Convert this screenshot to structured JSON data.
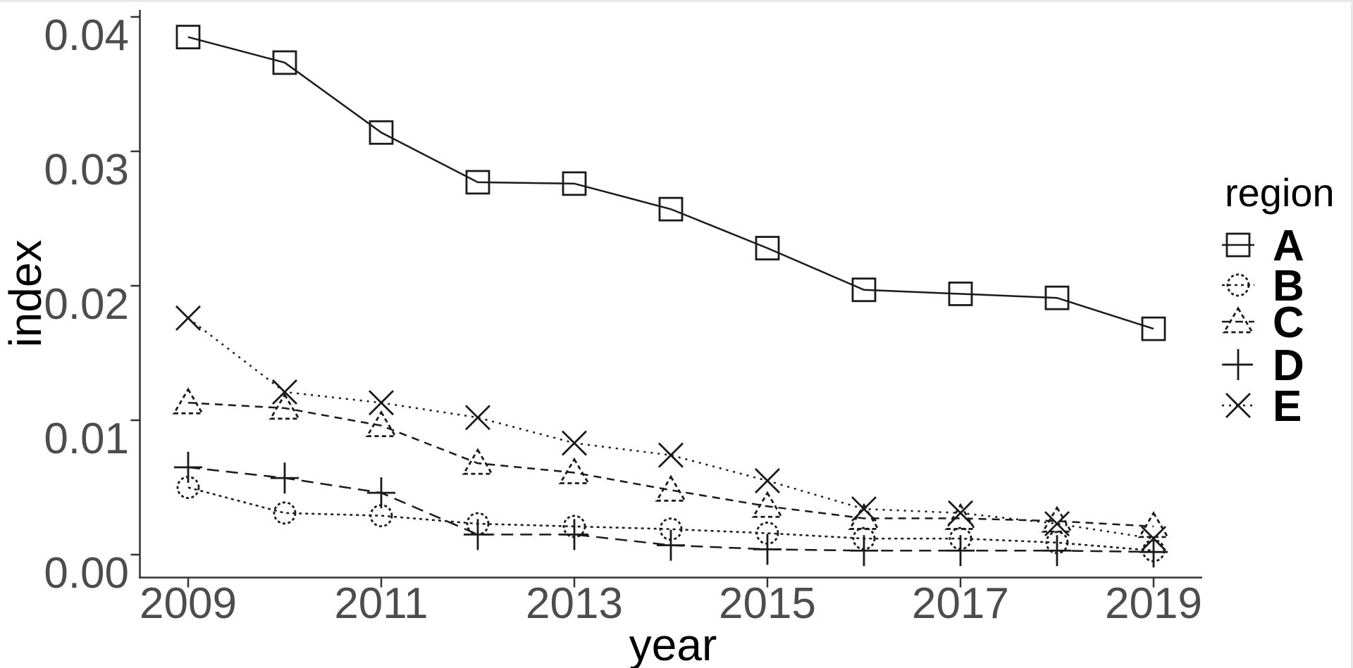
{
  "chart_data": {
    "type": "line",
    "title": "",
    "xlabel": "year",
    "ylabel": "index",
    "x": [
      2009,
      2010,
      2011,
      2012,
      2013,
      2014,
      2015,
      2016,
      2017,
      2018,
      2019
    ],
    "x_ticks": [
      2009,
      2011,
      2013,
      2015,
      2017,
      2019
    ],
    "x_tick_labels": [
      "2009",
      "2011",
      "2013",
      "2015",
      "2017",
      "2019"
    ],
    "y_ticks": [
      0.0,
      0.01,
      0.02,
      0.03,
      0.04
    ],
    "y_tick_labels": [
      "0.00",
      "0.01",
      "0.02",
      "0.03",
      "0.04"
    ],
    "xlim": [
      2008.5,
      2019.5
    ],
    "ylim": [
      -0.0017,
      0.0406
    ],
    "grid": "off",
    "legend_title": "region",
    "legend_position": "right",
    "series": [
      {
        "name": "A",
        "marker": "square",
        "linetype": "solid",
        "values": [
          0.0385,
          0.0366,
          0.0314,
          0.0277,
          0.0276,
          0.0257,
          0.0228,
          0.0197,
          0.0194,
          0.0191,
          0.0168
        ]
      },
      {
        "name": "B",
        "marker": "circle",
        "linetype": "dotted",
        "values": [
          0.005,
          0.0031,
          0.0029,
          0.0023,
          0.0021,
          0.0019,
          0.0016,
          0.0012,
          0.0012,
          0.0009,
          0.0003
        ]
      },
      {
        "name": "C",
        "marker": "triangle",
        "linetype": "dashed",
        "values": [
          0.0113,
          0.0109,
          0.0096,
          0.0068,
          0.0061,
          0.0048,
          0.0036,
          0.0027,
          0.0027,
          0.0025,
          0.0021
        ]
      },
      {
        "name": "D",
        "marker": "plus",
        "linetype": "longdash",
        "values": [
          0.0065,
          0.0057,
          0.0046,
          0.0015,
          0.0015,
          0.0007,
          0.0004,
          0.0003,
          0.0003,
          0.0003,
          0.0002
        ]
      },
      {
        "name": "E",
        "marker": "x",
        "linetype": "dotted-sparse",
        "values": [
          0.0176,
          0.0121,
          0.0113,
          0.0102,
          0.0083,
          0.0074,
          0.0055,
          0.0034,
          0.0031,
          0.0023,
          0.0012
        ]
      }
    ],
    "colors": {
      "foreground": "#1a1a1a",
      "axis": "#333333",
      "tick_label": "#4d4d4d",
      "text": "#000000",
      "background": "#ffffff",
      "window_edge": "#e8e8e8"
    }
  }
}
